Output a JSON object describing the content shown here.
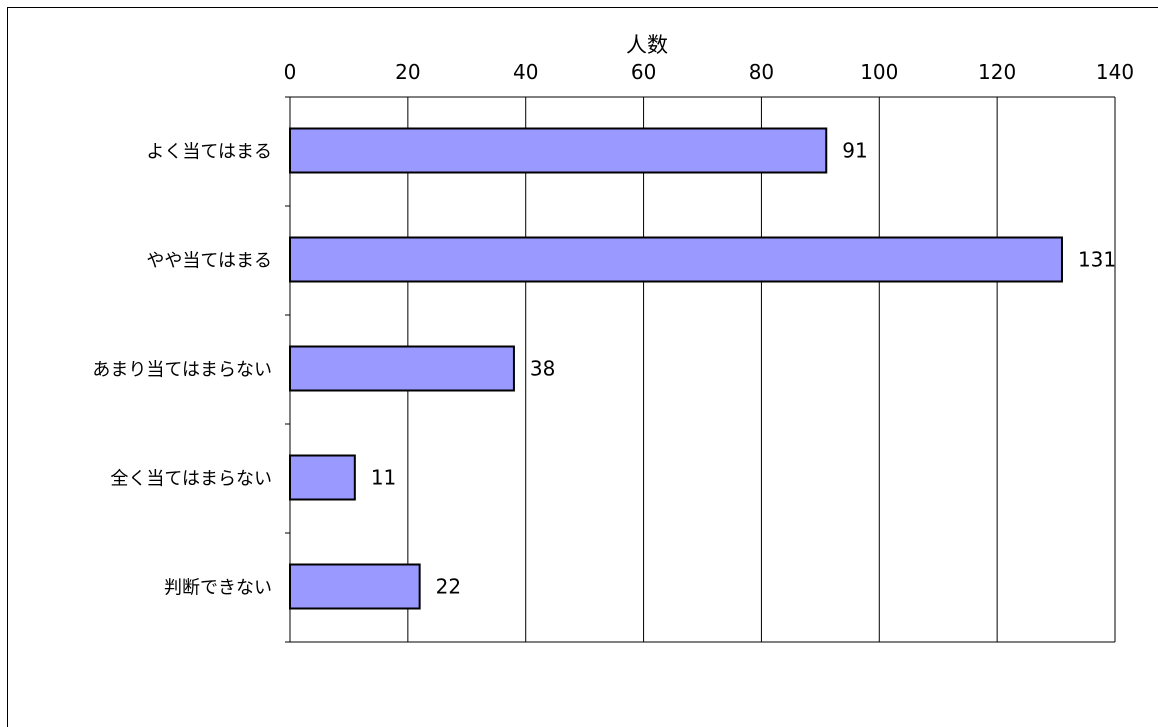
{
  "chart_data": {
    "type": "bar",
    "orientation": "horizontal",
    "title": "",
    "xlabel": "人数",
    "ylabel": "",
    "categories": [
      "よく当てはまる",
      "やや当てはまる",
      "あまり当てはまらない",
      "全く当てはまらない",
      "判断できない"
    ],
    "values": [
      91,
      131,
      38,
      11,
      22
    ],
    "data_labels": [
      "91",
      "131",
      "38",
      "11",
      "22"
    ],
    "xlim": [
      0,
      140
    ],
    "xticks": [
      0,
      20,
      40,
      60,
      80,
      100,
      120,
      140
    ],
    "x_axis_position": "top",
    "grid": true,
    "legend": "none",
    "bar_color": "#9999ff",
    "bar_edge_color": "#000000"
  }
}
